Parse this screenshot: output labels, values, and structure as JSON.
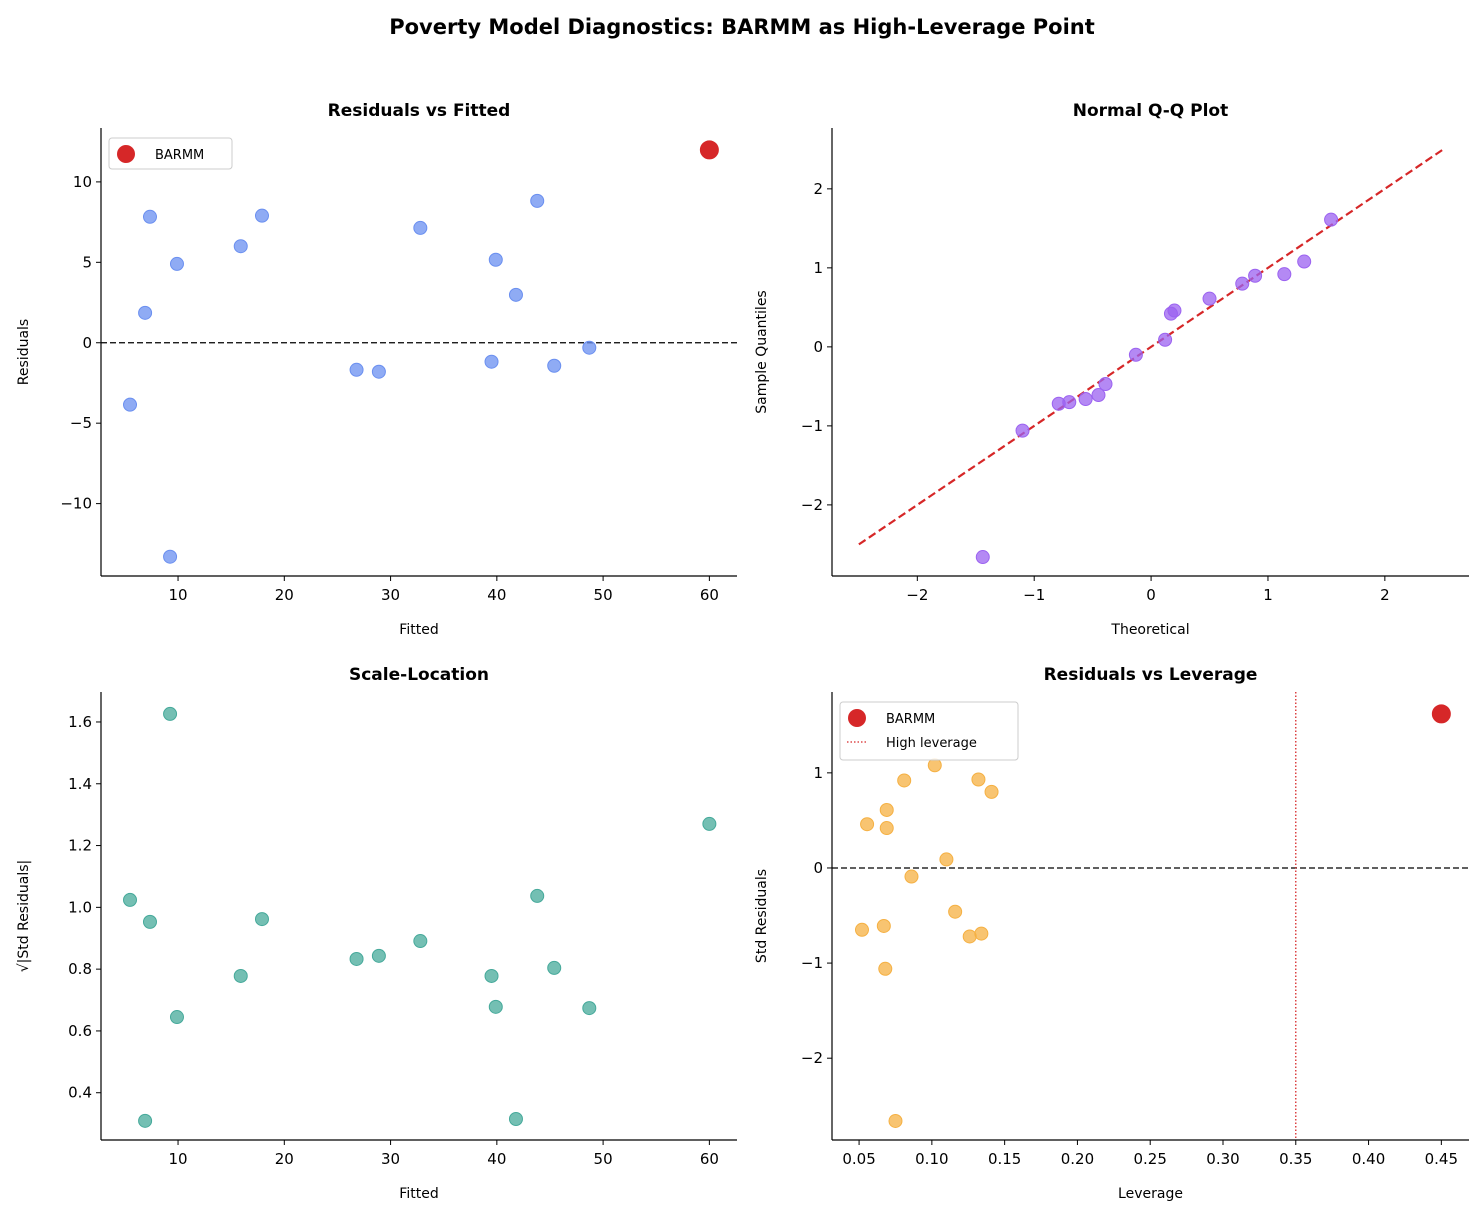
{
  "chart_data": {
    "suptitle": "Poverty Model Diagnostics: BARMM as High-Leverage Point",
    "panels": [
      {
        "type": "scatter",
        "title": "Residuals vs Fitted",
        "xlabel": "Fitted",
        "ylabel": "Residuals",
        "xlim": [
          2.75,
          62.6
        ],
        "ylim": [
          -14.5,
          13.35
        ],
        "xticks": [
          10,
          20,
          30,
          40,
          50,
          60
        ],
        "yticks": [
          -10,
          -5,
          0,
          5,
          10
        ],
        "hline": 0,
        "color": "#6a8ff0",
        "x": [
          5.48,
          6.9,
          7.36,
          9.25,
          9.9,
          15.9,
          17.9,
          26.8,
          28.9,
          32.8,
          39.5,
          39.9,
          41.8,
          43.8,
          45.4,
          48.7
        ],
        "y": [
          -3.85,
          1.86,
          7.83,
          -13.3,
          4.9,
          6.0,
          7.9,
          -1.68,
          -1.8,
          7.14,
          -1.18,
          5.16,
          2.98,
          8.82,
          -1.43,
          -0.31
        ],
        "highlight": {
          "name": "BARMM",
          "x": 60.0,
          "y": 11.99,
          "color": "#d62728"
        },
        "legend": [
          "BARMM"
        ],
        "legend_position": "upper left"
      },
      {
        "type": "scatter",
        "title": "Normal Q-Q Plot",
        "xlabel": "Theoretical",
        "ylabel": "Sample Quantiles",
        "xlim": [
          -2.73,
          2.72
        ],
        "ylim": [
          -2.9,
          2.77
        ],
        "xticks": [
          -2,
          -1,
          0,
          1,
          2
        ],
        "yticks": [
          -2,
          -1,
          0,
          1,
          2
        ],
        "refline": {
          "x": [
            -2.5,
            2.5
          ],
          "y": [
            -2.5,
            2.5
          ],
          "color": "#d62728"
        },
        "color": "#9b62f0",
        "x": [
          -1.44,
          -1.1,
          -0.79,
          -0.7,
          -0.56,
          -0.45,
          -0.39,
          -0.13,
          0.12,
          0.17,
          0.2,
          0.5,
          0.78,
          0.89,
          1.14,
          1.31,
          1.54
        ],
        "y": [
          -2.66,
          -1.06,
          -0.72,
          -0.7,
          -0.66,
          -0.61,
          -0.47,
          -0.1,
          0.09,
          0.42,
          0.46,
          0.61,
          0.8,
          0.9,
          0.92,
          1.08,
          1.61
        ]
      },
      {
        "type": "scatter",
        "title": "Scale-Location",
        "xlabel": "Fitted",
        "ylabel": "√|Std Residuals|",
        "xlim": [
          2.75,
          62.6
        ],
        "ylim": [
          0.247,
          1.697
        ],
        "xticks": [
          10,
          20,
          30,
          40,
          50,
          60
        ],
        "yticks": [
          0.4,
          0.6,
          0.8,
          1.0,
          1.2,
          1.4,
          1.6
        ],
        "color": "#45a99a",
        "x": [
          5.48,
          6.9,
          7.36,
          9.25,
          9.9,
          15.9,
          17.9,
          26.8,
          28.9,
          32.8,
          39.5,
          39.9,
          41.8,
          43.8,
          45.4,
          48.7,
          60.0
        ],
        "y": [
          1.024,
          0.309,
          0.953,
          1.626,
          0.645,
          0.778,
          0.962,
          0.833,
          0.843,
          0.891,
          0.778,
          0.678,
          0.315,
          1.037,
          0.804,
          0.674,
          1.27
        ]
      },
      {
        "type": "scatter",
        "title": "Residuals vs Leverage",
        "xlabel": "Leverage",
        "ylabel": "Std Residuals",
        "xlim": [
          0.0314,
          0.469
        ],
        "ylim": [
          -2.86,
          1.85
        ],
        "xticks": [
          0.05,
          0.1,
          0.15,
          0.2,
          0.25,
          0.3,
          0.35,
          0.4,
          0.45
        ],
        "yticks": [
          -2,
          -1,
          0,
          1
        ],
        "hline": 0,
        "vline": {
          "x": 0.35,
          "name": "High leverage",
          "color": "#d62728"
        },
        "color": "#f5b042",
        "x": [
          0.052,
          0.0555,
          0.067,
          0.069,
          0.069,
          0.068,
          0.075,
          0.081,
          0.086,
          0.102,
          0.11,
          0.116,
          0.126,
          0.132,
          0.134,
          0.141
        ],
        "y": [
          -0.65,
          0.46,
          -0.61,
          0.61,
          0.42,
          -1.06,
          -2.66,
          0.92,
          -0.09,
          1.08,
          0.09,
          -0.46,
          -0.72,
          0.93,
          -0.69,
          0.8
        ],
        "highlight": {
          "name": "BARMM",
          "x": 0.45,
          "y": 1.62,
          "color": "#d62728"
        },
        "legend": [
          "BARMM",
          "High leverage"
        ],
        "legend_position": "upper left"
      }
    ]
  }
}
